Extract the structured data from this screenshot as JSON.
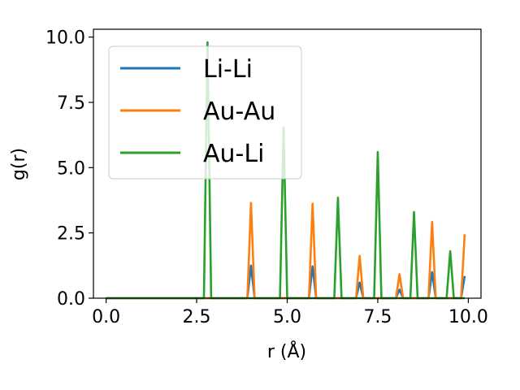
{
  "chart_data": {
    "type": "line",
    "title": "",
    "xlabel": "r (Å)",
    "ylabel": "g(r)",
    "xlim": [
      -0.35,
      10.35
    ],
    "ylim": [
      0,
      10.3
    ],
    "xticks": [
      0.0,
      2.5,
      5.0,
      7.5,
      10.0
    ],
    "xtick_labels": [
      "0.0",
      "2.5",
      "5.0",
      "7.5",
      "10.0"
    ],
    "yticks": [
      0.0,
      2.5,
      5.0,
      7.5,
      10.0
    ],
    "ytick_labels": [
      "0.0",
      "2.5",
      "5.0",
      "7.5",
      "10.0"
    ],
    "grid": false,
    "legend_position": "upper-left",
    "series": [
      {
        "name": "Li-Li",
        "color": "#1f77b4",
        "x": [
          0.0,
          3.9,
          4.0,
          4.1,
          5.6,
          5.7,
          5.8,
          6.9,
          7.0,
          7.1,
          8.0,
          8.1,
          8.2,
          8.9,
          9.0,
          9.1,
          9.8,
          9.9
        ],
        "y": [
          0,
          0,
          1.25,
          0,
          0,
          1.22,
          0,
          0,
          0.6,
          0,
          0,
          0.33,
          0,
          0,
          1.0,
          0,
          0,
          0.85
        ]
      },
      {
        "name": "Au-Au",
        "color": "#ff7f0e",
        "x": [
          0.0,
          3.9,
          4.0,
          4.1,
          5.6,
          5.7,
          5.8,
          6.9,
          7.0,
          7.1,
          8.0,
          8.1,
          8.2,
          8.9,
          9.0,
          9.1,
          9.8,
          9.9
        ],
        "y": [
          0,
          0,
          3.65,
          0,
          0,
          3.62,
          0,
          0,
          1.62,
          0,
          0,
          0.92,
          0,
          0,
          2.92,
          0,
          0,
          2.45
        ]
      },
      {
        "name": "Au-Li",
        "color": "#2ca02c",
        "x": [
          0.0,
          2.7,
          2.8,
          2.9,
          4.8,
          4.9,
          5.0,
          6.3,
          6.4,
          6.5,
          7.4,
          7.5,
          7.6,
          8.4,
          8.5,
          8.6,
          9.4,
          9.5,
          9.6,
          9.9
        ],
        "y": [
          0,
          0,
          9.8,
          0,
          0,
          6.52,
          0,
          0,
          3.85,
          0,
          0,
          5.6,
          0,
          0,
          3.3,
          0,
          0,
          1.8,
          0,
          0
        ]
      }
    ]
  }
}
